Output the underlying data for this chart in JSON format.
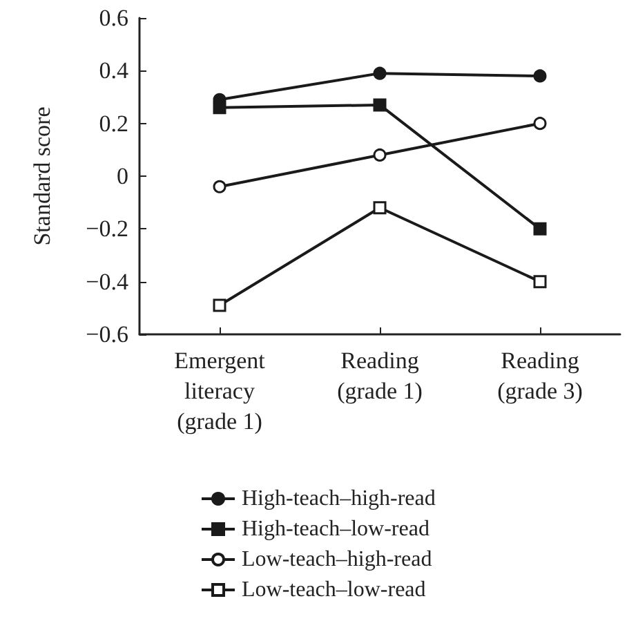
{
  "chart_data": {
    "type": "line",
    "ylabel": "Standard score",
    "categories": [
      "Emergent\nliteracy\n(grade 1)",
      "Reading\n(grade 1)",
      "Reading\n(grade 3)"
    ],
    "series": [
      {
        "name": "High-teach–high-read",
        "color": "#1a1a1a",
        "marker": "circle",
        "values": [
          0.29,
          0.39,
          0.38
        ]
      },
      {
        "name": "High-teach–low-read",
        "color": "#1a1a1a",
        "marker": "square",
        "values": [
          0.26,
          0.27,
          -0.2
        ]
      },
      {
        "name": "Low-teach–high-read",
        "color": "#1a1a1a",
        "marker": "circle-open",
        "values": [
          -0.04,
          0.08,
          0.2
        ]
      },
      {
        "name": "Low-teach–low-read",
        "color": "#1a1a1a",
        "marker": "square-open",
        "values": [
          -0.49,
          -0.12,
          -0.4
        ]
      }
    ],
    "ylim": [
      -0.6,
      0.6
    ],
    "yticks": [
      {
        "value": -0.6,
        "label": "−0.6"
      },
      {
        "value": -0.4,
        "label": "−0.4"
      },
      {
        "value": -0.2,
        "label": "−0.2"
      },
      0,
      0.2,
      0.4,
      0.6
    ],
    "grid": false,
    "legend": "bottom"
  }
}
